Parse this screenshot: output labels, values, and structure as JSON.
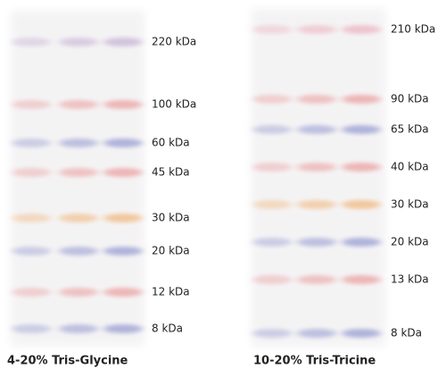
{
  "gels": [
    {
      "caption": "4-20% Tris-Glycine",
      "markers": [
        "220 kDa",
        "100 kDa",
        "60 kDa",
        "45 kDa",
        "30 kDa",
        "20 kDa",
        "12 kDa",
        "8 kDa"
      ]
    },
    {
      "caption": "10-20% Tris-Tricine",
      "markers": [
        "210 kDa",
        "90 kDa",
        "65 kDa",
        "40 kDa",
        "30 kDa",
        "20 kDa",
        "13 kDa",
        "8 kDa"
      ]
    }
  ]
}
